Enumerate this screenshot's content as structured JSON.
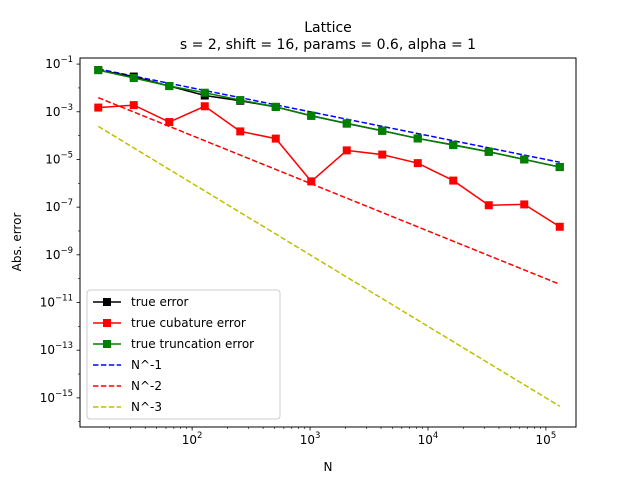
{
  "chart_data": {
    "type": "line",
    "title": "Lattice",
    "subtitle": "s = 2, shift = 16, params = 0.6, alpha = 1",
    "xlabel": "N",
    "ylabel": "Abs. error",
    "xscale": "log",
    "yscale": "log",
    "xlim": [
      11.2,
      180000
    ],
    "ylim": [
      6e-17,
      0.18
    ],
    "x_ticks": [
      {
        "value": 100,
        "base": "10",
        "exp": "2"
      },
      {
        "value": 1000,
        "base": "10",
        "exp": "3"
      },
      {
        "value": 10000,
        "base": "10",
        "exp": "4"
      },
      {
        "value": 100000,
        "base": "10",
        "exp": "5"
      }
    ],
    "y_ticks": [
      {
        "value": 0.1,
        "base": "10",
        "exp": "−1"
      },
      {
        "value": 0.001,
        "base": "10",
        "exp": "−3"
      },
      {
        "value": 1e-05,
        "base": "10",
        "exp": "−5"
      },
      {
        "value": 1e-07,
        "base": "10",
        "exp": "−7"
      },
      {
        "value": 1e-09,
        "base": "10",
        "exp": "−9"
      },
      {
        "value": 1e-11,
        "base": "10",
        "exp": "−11"
      },
      {
        "value": 1e-13,
        "base": "10",
        "exp": "−13"
      },
      {
        "value": 1e-15,
        "base": "10",
        "exp": "−15"
      }
    ],
    "grid": false,
    "legend_position": "lower-left",
    "x": [
      16,
      32,
      64,
      128,
      256,
      512,
      1024,
      2048,
      4096,
      8192,
      16384,
      32768,
      65536,
      131072
    ],
    "series": [
      {
        "name": "true error",
        "color": "#000000",
        "linestyle": "solid",
        "marker": "square",
        "values": [
          0.056,
          0.03,
          0.012,
          0.0048,
          0.0029,
          0.0016,
          0.00068,
          0.00032,
          0.00016,
          7.6e-05,
          4.1e-05,
          2.1e-05,
          1e-05,
          4.8e-06
        ]
      },
      {
        "name": "true cubature error",
        "color": "#ff0000",
        "linestyle": "solid",
        "marker": "square",
        "values": [
          0.0015,
          0.0019,
          0.00037,
          0.0017,
          0.00015,
          7.5e-05,
          1.2e-06,
          2.4e-05,
          1.6e-05,
          7e-06,
          1.3e-06,
          1.2e-07,
          1.3e-07,
          1.5e-08
        ]
      },
      {
        "name": "true truncation error",
        "color": "#008000",
        "linestyle": "solid",
        "marker": "square",
        "values": [
          0.056,
          0.026,
          0.012,
          0.0063,
          0.0031,
          0.0016,
          0.00068,
          0.00033,
          0.00016,
          7.6e-05,
          4e-05,
          2.1e-05,
          1e-05,
          4.8e-06
        ]
      },
      {
        "name": "N^-1",
        "color": "#0000ff",
        "linestyle": "dashed",
        "marker": "none",
        "values": [
          0.0625,
          0.03125,
          0.015625,
          0.0078125,
          0.00390625,
          0.001953125,
          0.0009765625,
          0.00048828125,
          0.000244140625,
          0.0001220703125,
          6.103515625e-05,
          3.0517578125e-05,
          1.52587890625e-05,
          7.62939453125e-06
        ]
      },
      {
        "name": "N^-2",
        "color": "#ff0000",
        "linestyle": "dashed",
        "marker": "none",
        "values": [
          0.00390625,
          0.0009765625,
          0.000244140625,
          6.103515625e-05,
          1.52587890625e-05,
          3.814697265625e-06,
          9.5367431640625e-07,
          2.384185791015625e-07,
          5.960464477539063e-08,
          1.4901161193847656e-08,
          3.725290298461914e-09,
          9.313225746154785e-10,
          2.3283064365386963e-10,
          5.820766091346741e-11
        ]
      },
      {
        "name": "N^-3",
        "color": "#bfbf00",
        "linestyle": "dashed",
        "marker": "none",
        "values": [
          0.000244140625,
          3.0517578125e-05,
          3.814697265625e-06,
          4.76837158203125e-07,
          5.960464477539063e-08,
          7.450580596923828e-09,
          9.313225746154785e-10,
          1.1641532182693481e-10,
          1.4551915228366852e-11,
          1.8189894035458565e-12,
          2.2737367544323206e-13,
          2.842170943040401e-14,
          3.552713678800501e-15,
          4.440892098500626e-16
        ]
      }
    ]
  }
}
